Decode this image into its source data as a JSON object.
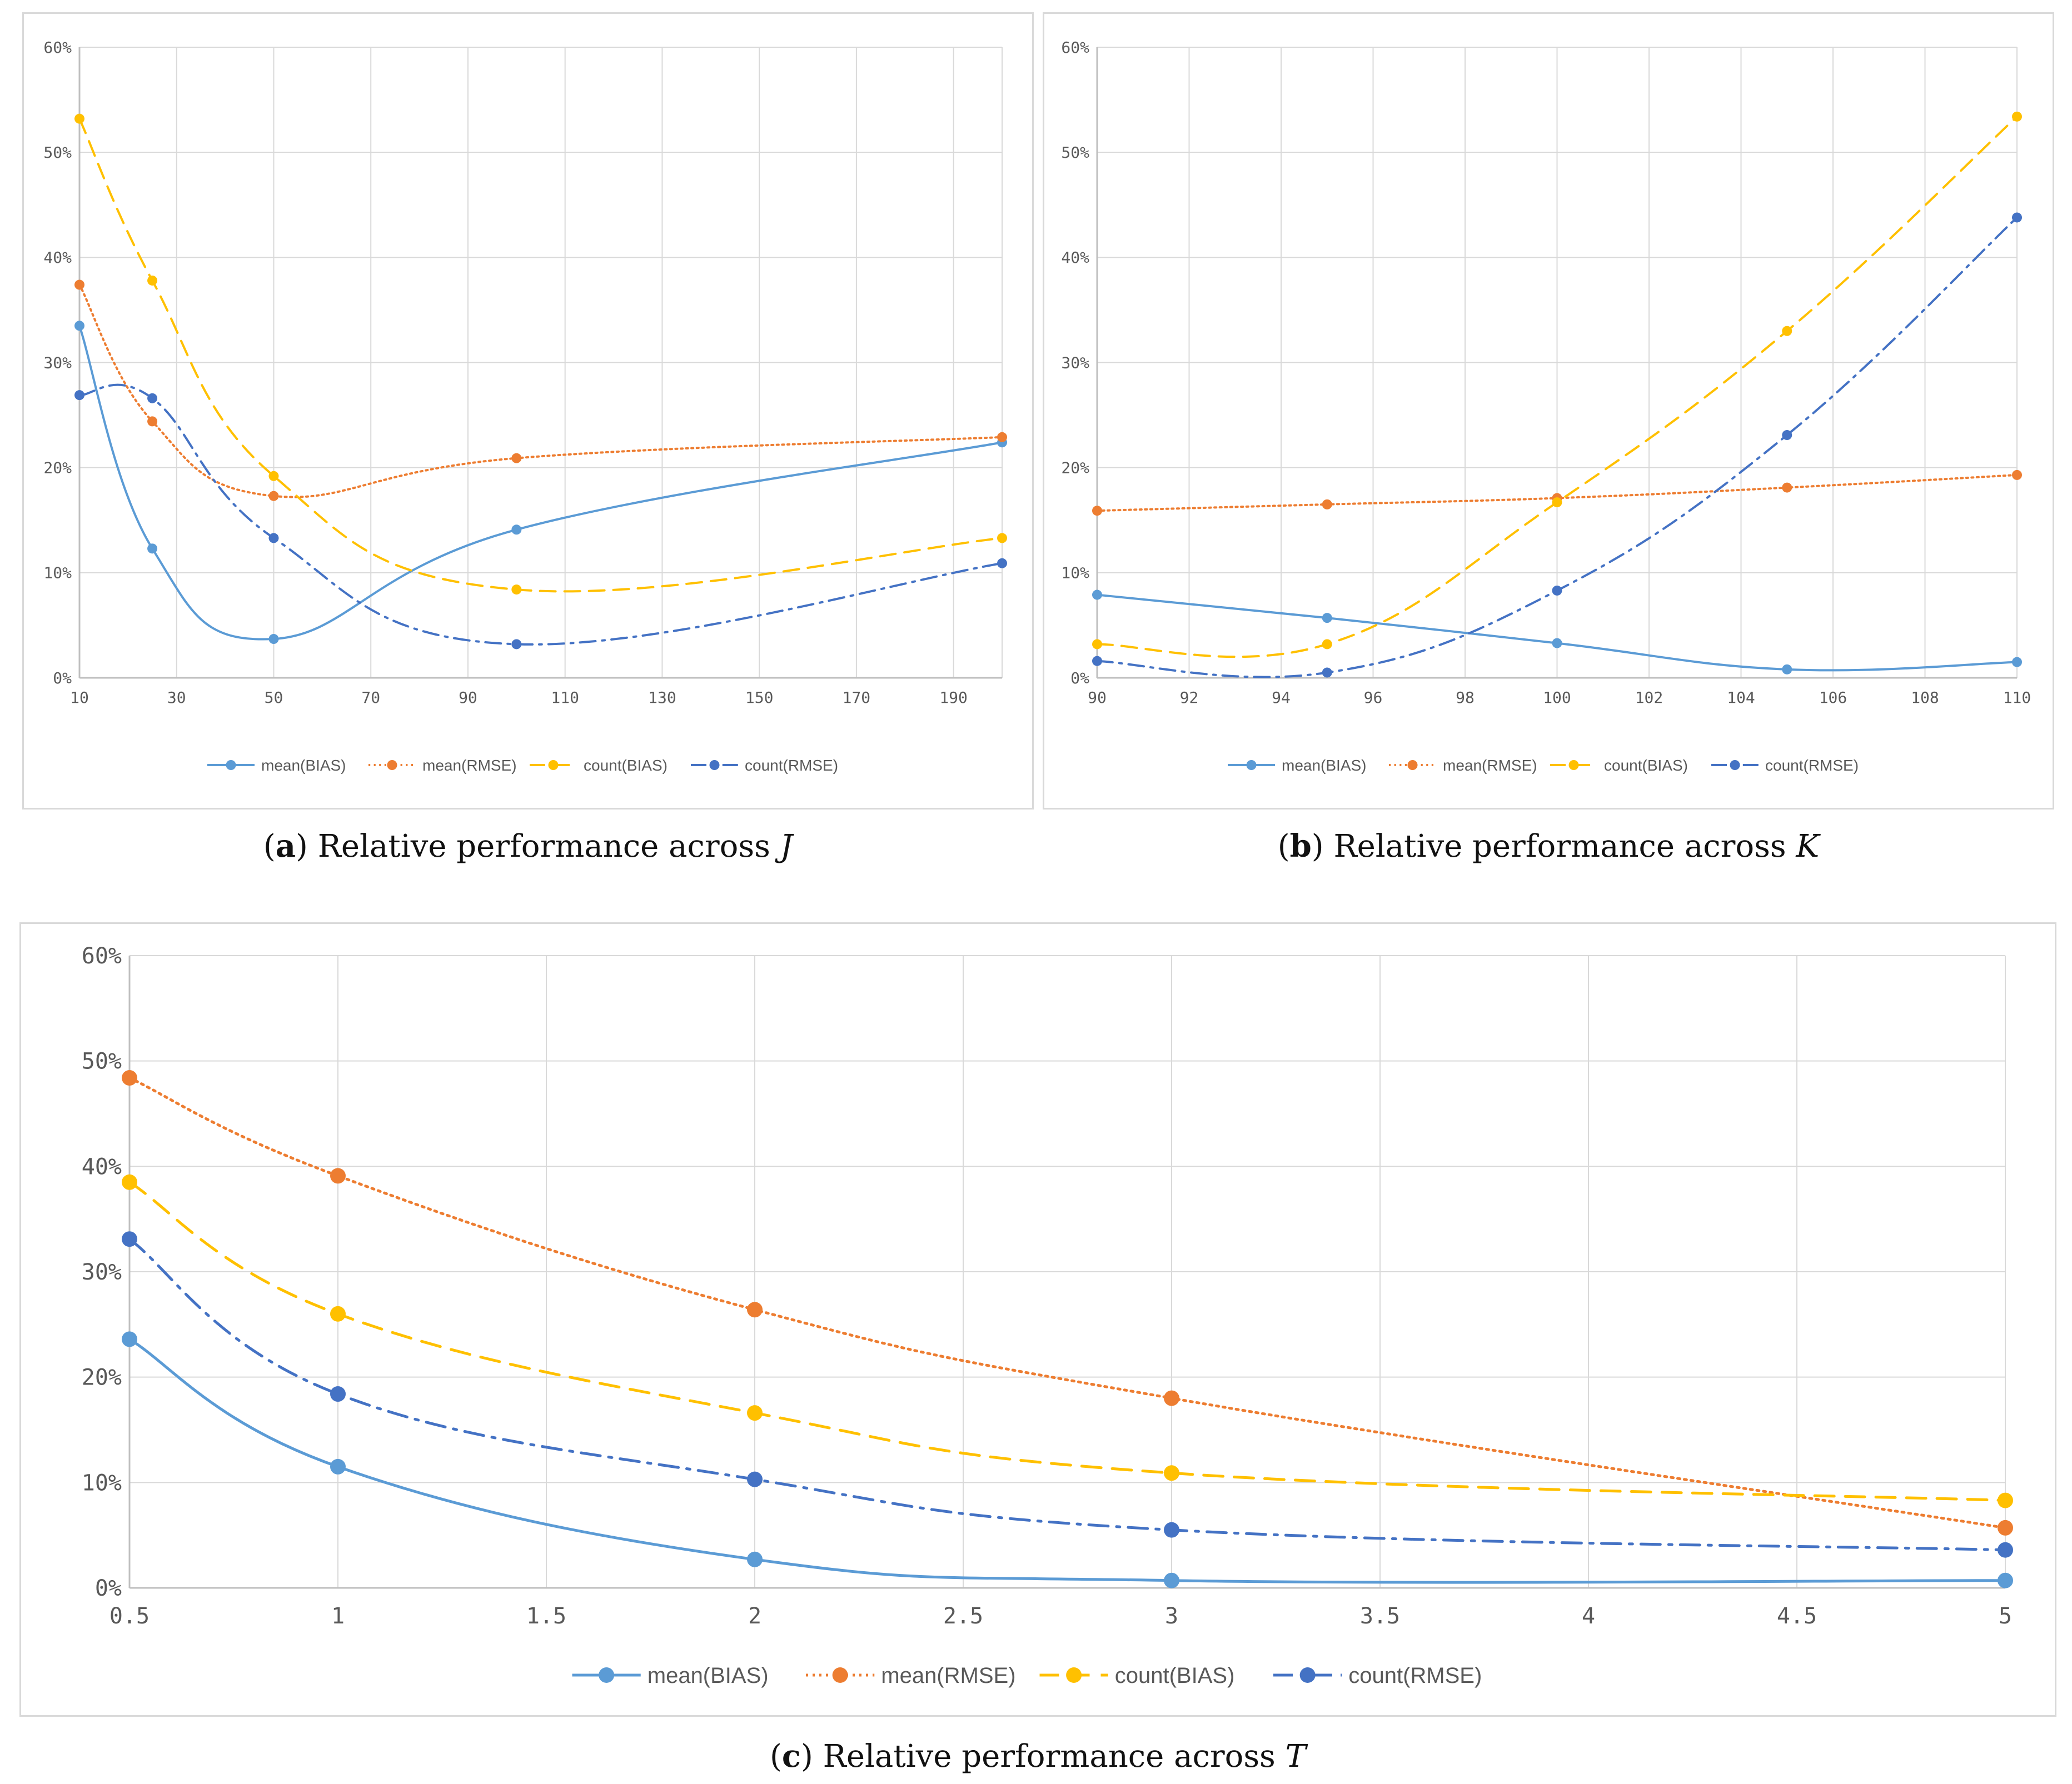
{
  "chart_data": [
    {
      "id": "a",
      "type": "line",
      "caption_label": "a",
      "caption_text": "Relative performance across",
      "caption_var": "J",
      "x_ticks": [
        "10",
        "30",
        "50",
        "70",
        "90",
        "110",
        "130",
        "150",
        "170",
        "190"
      ],
      "xlim": [
        10,
        200
      ],
      "y_ticks": [
        "0%",
        "10%",
        "20%",
        "30%",
        "40%",
        "50%",
        "60%"
      ],
      "ylim": [
        0,
        60
      ],
      "x": [
        10,
        25,
        50,
        100,
        200
      ],
      "series": [
        {
          "name": "mean(BIAS)",
          "values": [
            33.5,
            12.3,
            3.7,
            14.1,
            22.4
          ],
          "color": "#5b9bd5",
          "dash": "solid"
        },
        {
          "name": "mean(RMSE)",
          "values": [
            37.4,
            24.4,
            17.3,
            20.9,
            22.9
          ],
          "color": "#ed7d31",
          "dash": "dotted"
        },
        {
          "name": "count(BIAS)",
          "values": [
            53.2,
            37.8,
            19.2,
            8.4,
            13.3
          ],
          "color": "#ffc000",
          "dash": "dashed"
        },
        {
          "name": "count(RMSE)",
          "values": [
            26.9,
            26.6,
            13.3,
            3.2,
            10.9
          ],
          "color": "#4472c4",
          "dash": "dashdot"
        }
      ]
    },
    {
      "id": "b",
      "type": "line",
      "caption_label": "b",
      "caption_text": "Relative performance across",
      "caption_var": "K",
      "x_ticks": [
        "90",
        "92",
        "94",
        "96",
        "98",
        "100",
        "102",
        "104",
        "106",
        "108",
        "110"
      ],
      "xlim": [
        90,
        110
      ],
      "y_ticks": [
        "0%",
        "10%",
        "20%",
        "30%",
        "40%",
        "50%",
        "60%"
      ],
      "ylim": [
        0,
        60
      ],
      "x": [
        90,
        95,
        100,
        105,
        110
      ],
      "series": [
        {
          "name": "mean(BIAS)",
          "values": [
            7.9,
            5.7,
            3.3,
            0.8,
            1.5
          ],
          "color": "#5b9bd5",
          "dash": "solid"
        },
        {
          "name": "mean(RMSE)",
          "values": [
            15.9,
            16.5,
            17.1,
            18.1,
            19.3
          ],
          "color": "#ed7d31",
          "dash": "dotted"
        },
        {
          "name": "count(BIAS)",
          "values": [
            3.2,
            3.2,
            16.7,
            33.0,
            53.4
          ],
          "color": "#ffc000",
          "dash": "dashed"
        },
        {
          "name": "count(RMSE)",
          "values": [
            1.6,
            0.5,
            8.3,
            23.1,
            43.8
          ],
          "color": "#4472c4",
          "dash": "dashdot"
        }
      ]
    },
    {
      "id": "c",
      "type": "line",
      "caption_label": "c",
      "caption_text": "Relative performance across",
      "caption_var": "T",
      "x_ticks": [
        "0.5",
        "1",
        "1.5",
        "2",
        "2.5",
        "3",
        "3.5",
        "4",
        "4.5",
        "5"
      ],
      "xlim": [
        0.5,
        5
      ],
      "y_ticks": [
        "0%",
        "10%",
        "20%",
        "30%",
        "40%",
        "50%",
        "60%"
      ],
      "ylim": [
        0,
        60
      ],
      "x": [
        0.5,
        1,
        2,
        3,
        5
      ],
      "series": [
        {
          "name": "mean(BIAS)",
          "values": [
            23.6,
            11.5,
            2.7,
            0.7,
            0.7
          ],
          "color": "#5b9bd5",
          "dash": "solid"
        },
        {
          "name": "mean(RMSE)",
          "values": [
            48.4,
            39.1,
            26.4,
            18.0,
            5.7
          ],
          "color": "#ed7d31",
          "dash": "dotted"
        },
        {
          "name": "count(BIAS)",
          "values": [
            38.5,
            26.0,
            16.6,
            10.9,
            8.3
          ],
          "color": "#ffc000",
          "dash": "dashed"
        },
        {
          "name": "count(RMSE)",
          "values": [
            33.1,
            18.4,
            10.3,
            5.5,
            3.6
          ],
          "color": "#4472c4",
          "dash": "dashdot"
        }
      ]
    }
  ]
}
